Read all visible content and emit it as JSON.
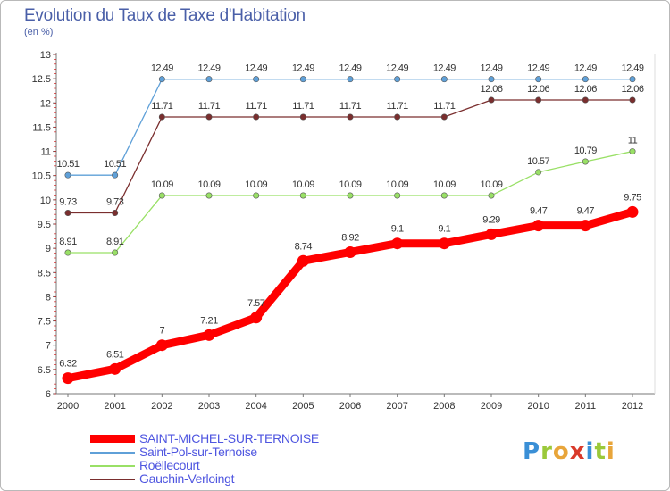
{
  "header": {
    "title": "Evolution du Taux de Taxe d'Habitation",
    "subtitle": "(en %)"
  },
  "logo": {
    "letters": [
      {
        "char": "P",
        "color": "#3a8fd6"
      },
      {
        "char": "r",
        "color": "#9bc93a"
      },
      {
        "char": "o",
        "color": "#e8a53a"
      },
      {
        "char": "x",
        "color": "#d93a2a"
      },
      {
        "char": "i",
        "color": "#3a8fd6"
      },
      {
        "char": "t",
        "color": "#9bc93a"
      },
      {
        "char": "i",
        "color": "#e8a53a"
      }
    ]
  },
  "chart_data": {
    "type": "line",
    "x": [
      "2000",
      "2001",
      "2002",
      "2003",
      "2004",
      "2005",
      "2006",
      "2007",
      "2008",
      "2009",
      "2010",
      "2011",
      "2012"
    ],
    "ylim": [
      6,
      13
    ],
    "yticks": [
      "6",
      "6.5",
      "7",
      "7.5",
      "8",
      "8.5",
      "9",
      "9.5",
      "10",
      "10.5",
      "11",
      "11.5",
      "12",
      "12.5",
      "13"
    ],
    "grid": false,
    "legend_position": "bottom-left",
    "series": [
      {
        "name": "SAINT-MICHEL-SUR-TERNOISE",
        "color": "#ff0000",
        "values": [
          6.32,
          6.51,
          7,
          7.21,
          7.57,
          8.74,
          8.92,
          9.1,
          9.1,
          9.29,
          9.47,
          9.47,
          9.75
        ],
        "labels": [
          "6.32",
          "6.51",
          "7",
          "7.21",
          "7.57",
          "8.74",
          "8.92",
          "9.1",
          "9.1",
          "9.29",
          "9.47",
          "9.47",
          "9.75"
        ],
        "thick": true
      },
      {
        "name": "Saint-Pol-sur-Ternoise",
        "color": "#5fa0d8",
        "values": [
          10.51,
          10.51,
          12.49,
          12.49,
          12.49,
          12.49,
          12.49,
          12.49,
          12.49,
          12.49,
          12.49,
          12.49,
          12.49
        ],
        "labels": [
          "10.51",
          "10.51",
          "12.49",
          "12.49",
          "12.49",
          "12.49",
          "12.49",
          "12.49",
          "12.49",
          "12.49",
          "12.49",
          "12.49",
          "12.49"
        ],
        "thick": false
      },
      {
        "name": "Roëllecourt",
        "color": "#99e066",
        "values": [
          8.91,
          8.91,
          10.09,
          10.09,
          10.09,
          10.09,
          10.09,
          10.09,
          10.09,
          10.09,
          10.57,
          10.79,
          11
        ],
        "labels": [
          "8.91",
          "8.91",
          "10.09",
          "10.09",
          "10.09",
          "10.09",
          "10.09",
          "10.09",
          "10.09",
          "10.09",
          "10.57",
          "10.79",
          "11"
        ],
        "thick": false
      },
      {
        "name": "Gauchin-Verloingt",
        "color": "#7a2e2e",
        "values": [
          9.73,
          9.73,
          11.71,
          11.71,
          11.71,
          11.71,
          11.71,
          11.71,
          11.71,
          12.06,
          12.06,
          12.06,
          12.06
        ],
        "labels": [
          "9.73",
          "9.73",
          "11.71",
          "11.71",
          "11.71",
          "11.71",
          "11.71",
          "11.71",
          "11.71",
          "12.06",
          "12.06",
          "12.06",
          "12.06"
        ],
        "thick": false
      }
    ]
  }
}
